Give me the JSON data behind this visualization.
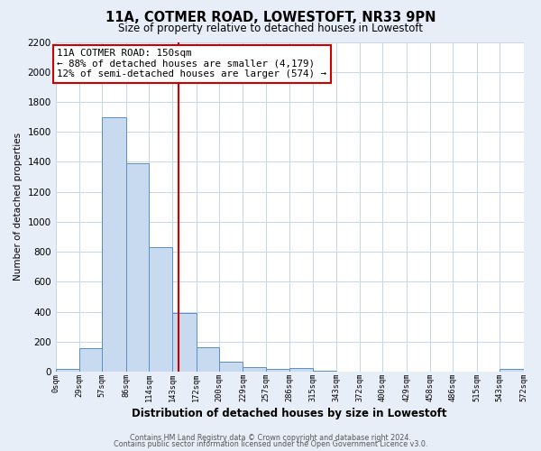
{
  "title": "11A, COTMER ROAD, LOWESTOFT, NR33 9PN",
  "subtitle": "Size of property relative to detached houses in Lowestoft",
  "xlabel": "Distribution of detached houses by size in Lowestoft",
  "ylabel": "Number of detached properties",
  "bin_edges": [
    0,
    29,
    57,
    86,
    114,
    143,
    172,
    200,
    229,
    257,
    286,
    315,
    343,
    372,
    400,
    429,
    458,
    486,
    515,
    543,
    572
  ],
  "bar_heights": [
    20,
    155,
    1700,
    1390,
    830,
    390,
    165,
    65,
    30,
    20,
    25,
    10,
    0,
    0,
    0,
    0,
    0,
    0,
    0,
    20
  ],
  "bar_color": "#c8daf0",
  "bar_edge_color": "#5a8fc3",
  "vline_x": 150,
  "vline_color": "#cc0000",
  "annotation_line1": "11A COTMER ROAD: 150sqm",
  "annotation_line2": "← 88% of detached houses are smaller (4,179)",
  "annotation_line3": "12% of semi-detached houses are larger (574) →",
  "annotation_box_facecolor": "#ffffff",
  "annotation_box_edgecolor": "#cc0000",
  "ylim": [
    0,
    2200
  ],
  "yticks": [
    0,
    200,
    400,
    600,
    800,
    1000,
    1200,
    1400,
    1600,
    1800,
    2000,
    2200
  ],
  "xtick_labels": [
    "0sqm",
    "29sqm",
    "57sqm",
    "86sqm",
    "114sqm",
    "143sqm",
    "172sqm",
    "200sqm",
    "229sqm",
    "257sqm",
    "286sqm",
    "315sqm",
    "343sqm",
    "372sqm",
    "400sqm",
    "429sqm",
    "458sqm",
    "486sqm",
    "515sqm",
    "543sqm",
    "572sqm"
  ],
  "grid_color": "#c8d4e8",
  "plot_bg_color": "#ffffff",
  "fig_bg_color": "#e8eef8",
  "footer1": "Contains HM Land Registry data © Crown copyright and database right 2024.",
  "footer2": "Contains public sector information licensed under the Open Government Licence v3.0."
}
